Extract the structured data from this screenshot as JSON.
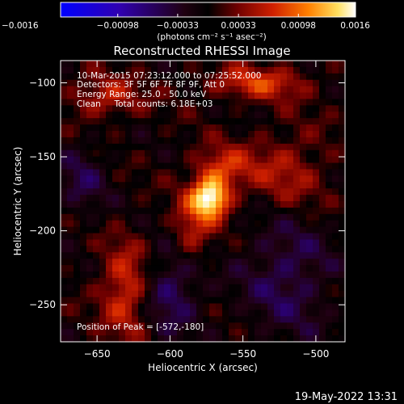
{
  "chart_data": {
    "type": "heatmap",
    "title": "Reconstructed RHESSI Image",
    "xlabel": "Heliocentric X (arcsec)",
    "ylabel": "Heliocentric Y (arcsec)",
    "xlim": [
      -675,
      -480
    ],
    "ylim": [
      -275,
      -85
    ],
    "x_ticks": [
      -650,
      -600,
      -550,
      -500
    ],
    "x_tick_labels": [
      "−650",
      "−600",
      "−550",
      "−500"
    ],
    "y_ticks": [
      -100,
      -150,
      -200,
      -250
    ],
    "y_tick_labels": [
      "−100",
      "−150",
      "−200",
      "−250"
    ],
    "colorbar": {
      "range": [
        -0.0016,
        0.0016
      ],
      "ticks": [
        -0.0016,
        -0.00098,
        -0.00033,
        0.00033,
        0.00098,
        0.0016
      ],
      "tick_labels": [
        "−0.0016",
        "−0.00098",
        "−0.00033",
        "0.00033",
        "0.00098",
        "0.0016"
      ],
      "unit_label": "(photons cm⁻² s⁻¹ asec⁻²)",
      "colormap": [
        "#0000ff",
        "#2000c0",
        "#400060",
        "#000000",
        "#600000",
        "#c01000",
        "#ff6000",
        "#ffc020",
        "#ffffa0",
        "#ffffff"
      ]
    },
    "peak": {
      "x": -572,
      "y": -180
    },
    "sources": [
      {
        "x": -572,
        "y": -178,
        "amplitude": 0.0016,
        "sigma_x": 9,
        "sigma_y": 9
      },
      {
        "x": -565,
        "y": -158,
        "amplitude": 0.0007,
        "sigma_x": 14,
        "sigma_y": 10
      },
      {
        "x": -585,
        "y": -200,
        "amplitude": 0.0006,
        "sigma_x": 10,
        "sigma_y": 16
      },
      {
        "x": -630,
        "y": -240,
        "amplitude": 0.0008,
        "sigma_x": 12,
        "sigma_y": 22
      },
      {
        "x": -645,
        "y": -110,
        "amplitude": 0.0006,
        "sigma_x": 18,
        "sigma_y": 10
      },
      {
        "x": -540,
        "y": -100,
        "amplitude": 0.0007,
        "sigma_x": 25,
        "sigma_y": 8
      },
      {
        "x": -520,
        "y": -160,
        "amplitude": 0.0005,
        "sigma_x": 20,
        "sigma_y": 20
      },
      {
        "x": -600,
        "y": -240,
        "amplitude": -0.0006,
        "sigma_x": 15,
        "sigma_y": 20
      },
      {
        "x": -520,
        "y": -230,
        "amplitude": -0.0005,
        "sigma_x": 22,
        "sigma_y": 30
      },
      {
        "x": -660,
        "y": -165,
        "amplitude": -0.0004,
        "sigma_x": 12,
        "sigma_y": 18
      }
    ]
  },
  "annotations": {
    "time_range": "10-Mar-2015 07:23:12.000 to 07:25:52.000",
    "detectors": "Detectors: 3F 5F 6F 7F 8F 9F, Att 0",
    "energy_range": "Energy Range: 25.0 - 50.0 keV",
    "method_counts": "Clean     Total counts: 6.18E+03",
    "peak_position": "Position of Peak = [-572,-180]"
  },
  "footer": {
    "date": "19-May-2022 13:31"
  }
}
